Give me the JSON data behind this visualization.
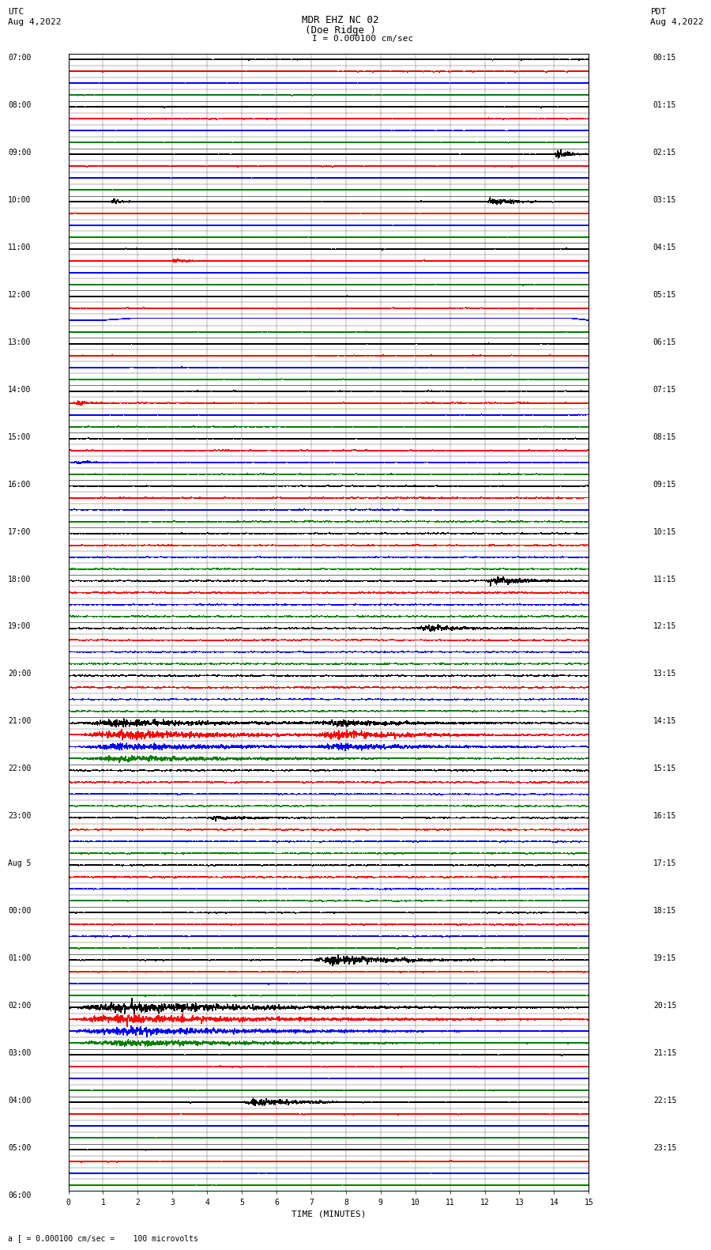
{
  "title_line1": "MDR EHZ NC 02",
  "title_line2": "(Doe Ridge )",
  "title_line3": "I = 0.000100 cm/sec",
  "left_header1": "UTC",
  "left_header2": "Aug 4,2022",
  "right_header1": "PDT",
  "right_header2": "Aug 4,2022",
  "xlabel": "TIME (MINUTES)",
  "footer": "a [ = 0.000100 cm/sec =    100 microvolts",
  "utc_labels": [
    "07:00",
    "08:00",
    "09:00",
    "10:00",
    "11:00",
    "12:00",
    "13:00",
    "14:00",
    "15:00",
    "16:00",
    "17:00",
    "18:00",
    "19:00",
    "20:00",
    "21:00",
    "22:00",
    "23:00",
    "Aug 5",
    "00:00",
    "01:00",
    "02:00",
    "03:00",
    "04:00",
    "05:00",
    "06:00"
  ],
  "pdt_labels": [
    "00:15",
    "01:15",
    "02:15",
    "03:15",
    "04:15",
    "05:15",
    "06:15",
    "07:15",
    "08:15",
    "09:15",
    "10:15",
    "11:15",
    "12:15",
    "13:15",
    "14:15",
    "15:15",
    "16:15",
    "17:15",
    "18:15",
    "19:15",
    "20:15",
    "21:15",
    "22:15",
    "23:15"
  ],
  "n_rows": 96,
  "n_minutes": 15,
  "trace_colors": [
    "black",
    "red",
    "blue",
    "green"
  ],
  "bg_color": "white",
  "grid_color": "#555555",
  "line_width": 0.5,
  "seed": 12345
}
